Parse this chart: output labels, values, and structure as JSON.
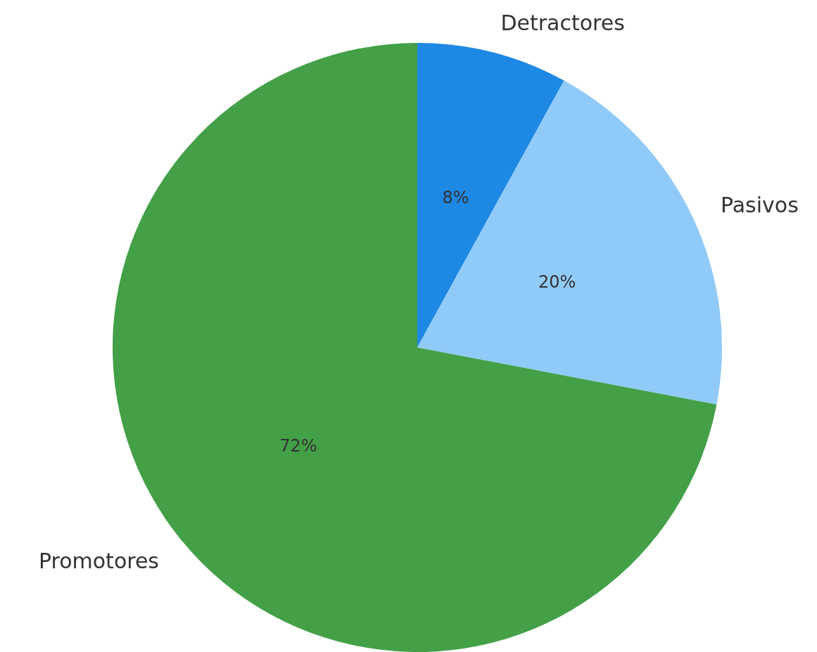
{
  "chart_data": {
    "type": "pie",
    "categories": [
      "Detractores",
      "Pasivos",
      "Promotores"
    ],
    "values": [
      8,
      20,
      72
    ],
    "value_labels": [
      "8%",
      "20%",
      "72%"
    ],
    "colors": [
      "#1e88e5",
      "#90caf9",
      "#43a047"
    ]
  }
}
